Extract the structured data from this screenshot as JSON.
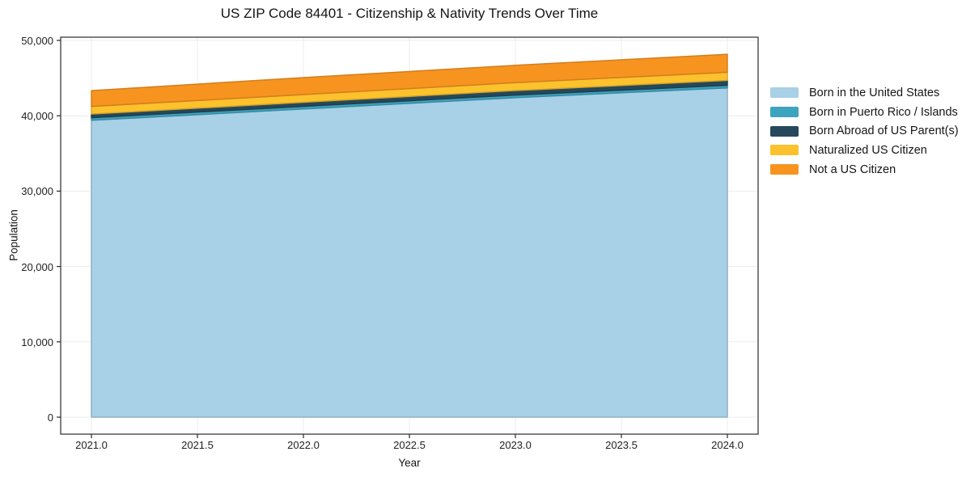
{
  "chart_data": {
    "type": "area",
    "stacked": true,
    "title": "US ZIP Code 84401 - Citizenship & Nativity Trends Over Time",
    "xlabel": "Year",
    "ylabel": "Population",
    "x": [
      2021,
      2022,
      2023,
      2024
    ],
    "series": [
      {
        "name": "Born in the United States",
        "color": "#a8d0e6",
        "values": [
          39400,
          40900,
          42400,
          43700
        ]
      },
      {
        "name": "Born in Puerto Rico / Islands",
        "color": "#3da4bf",
        "values": [
          340,
          345,
          350,
          350
        ]
      },
      {
        "name": "Born Abroad of US Parent(s)",
        "color": "#25485a",
        "values": [
          500,
          550,
          600,
          650
        ]
      },
      {
        "name": "Naturalized US Citizen",
        "color": "#fcc22d",
        "values": [
          1000,
          1020,
          1050,
          1070
        ]
      },
      {
        "name": "Not a US Citizen",
        "color": "#f79420",
        "values": [
          2100,
          2250,
          2300,
          2400
        ]
      }
    ],
    "x_ticks": [
      "2021.0",
      "2021.5",
      "2022.0",
      "2022.5",
      "2023.0",
      "2023.5",
      "2024.0"
    ],
    "x_tick_values": [
      2021,
      2021.5,
      2022,
      2022.5,
      2023,
      2023.5,
      2024
    ],
    "y_ticks": [
      "0",
      "10,000",
      "20,000",
      "30,000",
      "40,000",
      "50,000"
    ],
    "y_tick_values": [
      0,
      10000,
      20000,
      30000,
      40000,
      50000
    ],
    "xlim": [
      2021,
      2024
    ],
    "ylim": [
      0,
      50000
    ],
    "grid": true,
    "legend_position": "right",
    "colors": {
      "background": "#ffffff",
      "grid": "#ececec",
      "axis": "#2a2a2a",
      "text": "#151515"
    }
  }
}
